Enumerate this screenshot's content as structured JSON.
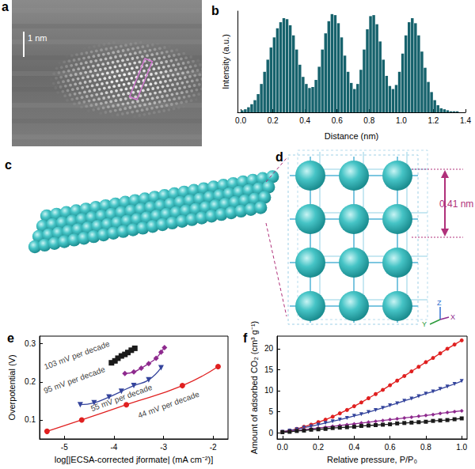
{
  "chart_data": [
    {
      "type": "histogram",
      "title": "b",
      "x_label": "Distance (nm)",
      "y_label": "Intensity (a.u.)",
      "color": "#16626c",
      "bins": [
        0,
        0.02,
        0.04,
        0.06,
        0.08,
        0.1,
        0.12,
        0.14,
        0.16,
        0.18,
        0.2,
        0.22,
        0.24,
        0.26,
        0.28,
        0.3,
        0.32,
        0.34,
        0.36,
        0.38,
        0.4,
        0.42,
        0.44,
        0.46,
        0.48,
        0.5,
        0.52,
        0.54,
        0.56,
        0.58,
        0.6,
        0.62,
        0.64,
        0.66,
        0.68,
        0.7,
        0.72,
        0.74,
        0.76,
        0.78,
        0.8,
        0.82,
        0.84,
        0.86,
        0.88,
        0.9,
        0.92,
        0.94,
        0.96,
        0.98,
        1,
        1.02,
        1.04,
        1.06,
        1.08,
        1.1,
        1.12,
        1.14,
        1.16,
        1.18,
        1.2,
        1.22,
        1.24,
        1.26,
        1.28,
        1.3,
        1.32,
        1.34,
        1.36,
        1.38,
        1.4
      ],
      "values": [
        0.02,
        0.03,
        0.05,
        0.08,
        0.12,
        0.18,
        0.28,
        0.4,
        0.52,
        0.64,
        0.74,
        0.83,
        0.89,
        0.93,
        0.92,
        0.86,
        0.76,
        0.62,
        0.47,
        0.35,
        0.28,
        0.24,
        0.25,
        0.32,
        0.45,
        0.62,
        0.78,
        0.9,
        0.97,
        0.96,
        0.88,
        0.74,
        0.56,
        0.4,
        0.29,
        0.23,
        0.28,
        0.42,
        0.62,
        0.82,
        0.95,
        0.96,
        0.87,
        0.7,
        0.52,
        0.36,
        0.26,
        0.23,
        0.27,
        0.4,
        0.58,
        0.76,
        0.89,
        0.93,
        0.88,
        0.76,
        0.6,
        0.44,
        0.3,
        0.2,
        0.12,
        0.07,
        0.04,
        0.03,
        0.02,
        0.01,
        0.01,
        0.01,
        0,
        0
      ],
      "xlim": [
        -0.02,
        1.4
      ],
      "xticks": [
        {
          "value": 0,
          "label": "0.0"
        },
        0.2,
        0.4,
        0.6,
        0.8,
        {
          "value": 1,
          "label": "1.0"
        },
        1.2,
        1.4
      ],
      "ylim": [
        0,
        1
      ],
      "tick_labels": "x",
      "grid": false
    },
    {
      "type": "line",
      "title": "e",
      "x_label": "log[|ECSA-corrected jformate| (mA cm⁻²)]",
      "y_label": "Overpotential (V)",
      "xlim": [
        -5.5,
        -1.7
      ],
      "xticks": [
        -5,
        -4,
        -3,
        -2
      ],
      "ylim": [
        0.05,
        0.32
      ],
      "yticks": [
        0.1,
        0.2,
        0.3
      ],
      "grid": false,
      "series": [
        {
          "color": "#1a1a1a",
          "marker": "square",
          "x": [
            -4.05,
            -3.98,
            -3.92,
            -3.85,
            -3.78,
            -3.72,
            -3.65,
            -3.58
          ],
          "values": [
            0.25,
            0.255,
            0.262,
            0.268,
            0.272,
            0.277,
            0.283,
            0.288
          ]
        },
        {
          "color": "#8e2a8e",
          "marker": "diamond",
          "x": [
            -3.78,
            -3.6,
            -3.45,
            -3.3,
            -3.15,
            -3.05,
            -2.98
          ],
          "values": [
            0.222,
            0.226,
            0.236,
            0.248,
            0.262,
            0.278,
            0.29
          ]
        },
        {
          "color": "#34449c",
          "marker": "triangle-down",
          "x": [
            -4.68,
            -4.4,
            -4.1,
            -3.85,
            -3.6,
            -3.3,
            -3.05
          ],
          "values": [
            0.14,
            0.145,
            0.16,
            0.175,
            0.19,
            0.205,
            0.237
          ]
        },
        {
          "color": "#e02020",
          "marker": "circle",
          "x": [
            -5.35,
            -4.65,
            -3.75,
            -2.62,
            -1.9
          ],
          "values": [
            0.07,
            0.1,
            0.14,
            0.19,
            0.24
          ]
        }
      ],
      "annotations": [
        {
          "text": "103 mV per decade",
          "x": -4.75,
          "y": 0.27
        },
        {
          "text": "95 mV per decade",
          "x": -4.8,
          "y": 0.205
        },
        {
          "text": "55 mV per decade",
          "x": -3.85,
          "y": 0.158
        },
        {
          "text": "44 mV per decade",
          "x": -2.9,
          "y": 0.14
        }
      ]
    },
    {
      "type": "line",
      "title": "f",
      "x_label": "Relative pressure, P/P₀",
      "y_label": "Amount of adsorbed CO₂ (cm³ g⁻¹)",
      "xlim": [
        -0.03,
        1.03
      ],
      "xticks": [
        {
          "value": 0,
          "label": "0.0"
        },
        0.2,
        0.4,
        0.6,
        0.8,
        {
          "value": 1,
          "label": "1.0"
        }
      ],
      "ylim": [
        -1.5,
        23
      ],
      "yticks": [
        0,
        5,
        10,
        15,
        20
      ],
      "grid": false,
      "x": [
        0,
        0.04,
        0.08,
        0.12,
        0.16,
        0.2,
        0.24,
        0.28,
        0.32,
        0.36,
        0.4,
        0.44,
        0.48,
        0.52,
        0.56,
        0.6,
        0.64,
        0.68,
        0.72,
        0.76,
        0.8,
        0.84,
        0.88,
        0.92,
        0.96,
        1
      ],
      "series": [
        {
          "color": "#e02020",
          "marker": "circle",
          "values": [
            0.2,
            0.5,
            0.9,
            1.4,
            1.9,
            2.5,
            3.1,
            3.8,
            4.6,
            5.4,
            6.3,
            7.2,
            8.2,
            9.2,
            10.2,
            11.3,
            12.4,
            13.5,
            14.6,
            15.7,
            16.8,
            17.8,
            18.9,
            20,
            21,
            22
          ]
        },
        {
          "color": "#34449c",
          "marker": "triangle-down",
          "values": [
            0.2,
            0.5,
            0.8,
            1.2,
            1.5,
            1.9,
            2.3,
            2.7,
            3.1,
            3.5,
            4,
            4.4,
            4.9,
            5.4,
            5.9,
            6.5,
            7,
            7.6,
            8.1,
            8.7,
            9.3,
            9.8,
            10.4,
            11,
            11.6,
            12.3
          ]
        },
        {
          "color": "#8e2a8e",
          "marker": "diamond",
          "values": [
            0.1,
            0.3,
            0.5,
            0.7,
            0.9,
            1.1,
            1.3,
            1.5,
            1.7,
            1.9,
            2.1,
            2.3,
            2.5,
            2.7,
            2.9,
            3.1,
            3.3,
            3.5,
            3.7,
            3.9,
            4.1,
            4.3,
            4.6,
            4.8,
            5,
            5.2
          ]
        },
        {
          "color": "#1a1a1a",
          "marker": "square",
          "values": [
            0.1,
            0.2,
            0.4,
            0.5,
            0.7,
            0.8,
            0.9,
            1.1,
            1.2,
            1.3,
            1.4,
            1.6,
            1.7,
            1.8,
            1.9,
            2,
            2.2,
            2.3,
            2.4,
            2.5,
            2.6,
            2.8,
            2.9,
            3,
            3.2,
            3.4
          ]
        }
      ]
    }
  ],
  "images": {
    "a": {
      "label": "a",
      "scale_bar": "1 nm"
    },
    "c": {
      "label": "c"
    },
    "d": {
      "label": "d",
      "spacing": "0.41 nm",
      "axes": {
        "x": "X",
        "y": "Y",
        "z": "Z"
      }
    }
  }
}
